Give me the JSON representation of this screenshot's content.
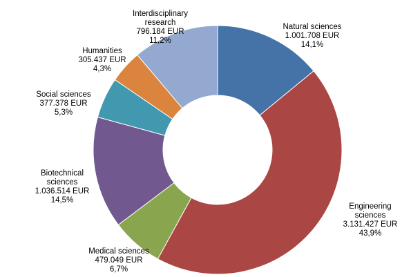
{
  "chart_data": {
    "type": "pie",
    "donut": true,
    "title": "",
    "legend": "none",
    "slices": [
      {
        "name_lines": [
          "Natural  sciences"
        ],
        "value": "1.001.708 EUR",
        "amount": 1001708,
        "percent": "14,1%",
        "color": "#4572a7"
      },
      {
        "name_lines": [
          "Engineering",
          "sciences"
        ],
        "value": "3.131.427 EUR",
        "amount": 3131427,
        "percent": "43,9%",
        "color": "#aa4643"
      },
      {
        "name_lines": [
          "Medical sciences"
        ],
        "value": "479.049 EUR",
        "amount": 479049,
        "percent": "6,7%",
        "color": "#89a54e"
      },
      {
        "name_lines": [
          "Biotechnical",
          "sciences"
        ],
        "value": "1.036.514 EUR",
        "amount": 1036514,
        "percent": "14,5%",
        "color": "#71588f"
      },
      {
        "name_lines": [
          "Social sciences"
        ],
        "value": "377.378 EUR",
        "amount": 377378,
        "percent": "5,3%",
        "color": "#4198af"
      },
      {
        "name_lines": [
          "Humanities"
        ],
        "value": "305.437 EUR",
        "amount": 305437,
        "percent": "4,3%",
        "color": "#db843d"
      },
      {
        "name_lines": [
          "Interdisciplinary",
          "research"
        ],
        "value": "796.184 EUR",
        "amount": 796184,
        "percent": "11,2%",
        "color": "#93a9cf"
      }
    ]
  }
}
